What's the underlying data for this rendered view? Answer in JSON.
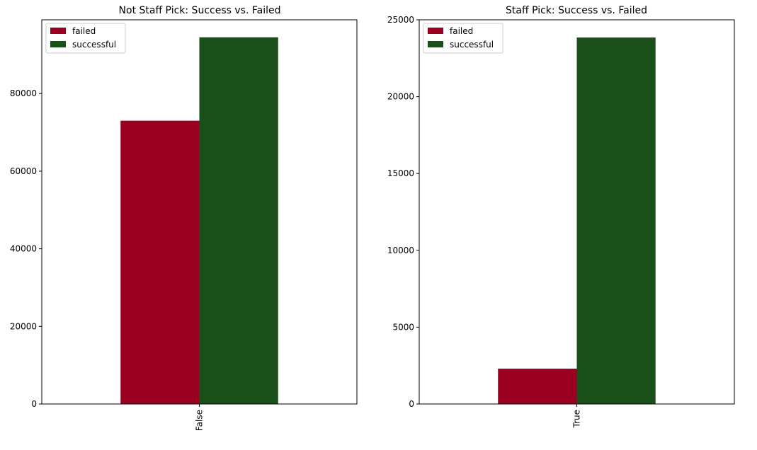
{
  "chart_data": [
    {
      "type": "bar",
      "title": "Not Staff Pick: Success vs. Failed",
      "xlabel": "",
      "ylabel": "",
      "categories": [
        "False"
      ],
      "series": [
        {
          "name": "failed",
          "values": [
            73000
          ],
          "color": "#9a0020"
        },
        {
          "name": "successful",
          "values": [
            94500
          ],
          "color": "#1a4f1a"
        }
      ],
      "ylim": [
        0,
        99000
      ],
      "yticks": [
        0,
        20000,
        40000,
        60000,
        80000
      ],
      "ytick_labels": [
        "0",
        "20000",
        "40000",
        "60000",
        "80000"
      ],
      "xtick_rotation": "vertical",
      "legend": {
        "loc": "upper-left",
        "labels": [
          "failed",
          "successful"
        ]
      },
      "grid": false
    },
    {
      "type": "bar",
      "title": "Staff Pick: Success vs. Failed",
      "xlabel": "",
      "ylabel": "",
      "categories": [
        "True"
      ],
      "series": [
        {
          "name": "failed",
          "values": [
            2300
          ],
          "color": "#9a0020"
        },
        {
          "name": "successful",
          "values": [
            23850
          ],
          "color": "#1a4f1a"
        }
      ],
      "ylim": [
        0,
        25000
      ],
      "yticks": [
        0,
        5000,
        10000,
        15000,
        20000,
        25000
      ],
      "ytick_labels": [
        "0",
        "5000",
        "10000",
        "15000",
        "20000",
        "25000"
      ],
      "xtick_rotation": "vertical",
      "legend": {
        "loc": "upper-left",
        "labels": [
          "failed",
          "successful"
        ]
      },
      "grid": false
    }
  ]
}
